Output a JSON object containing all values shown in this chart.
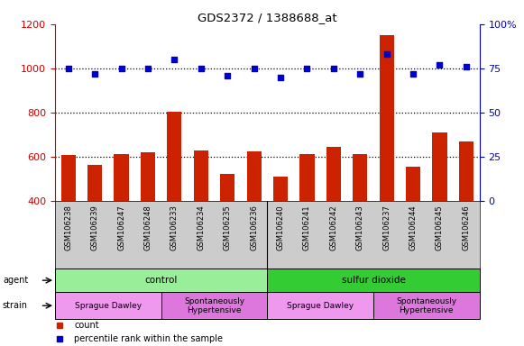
{
  "title": "GDS2372 / 1388688_at",
  "samples": [
    "GSM106238",
    "GSM106239",
    "GSM106247",
    "GSM106248",
    "GSM106233",
    "GSM106234",
    "GSM106235",
    "GSM106236",
    "GSM106240",
    "GSM106241",
    "GSM106242",
    "GSM106243",
    "GSM106237",
    "GSM106244",
    "GSM106245",
    "GSM106246"
  ],
  "counts": [
    610,
    565,
    615,
    620,
    805,
    630,
    525,
    625,
    510,
    615,
    645,
    615,
    1150,
    555,
    710,
    670
  ],
  "percentile": [
    75,
    72,
    75,
    75,
    80,
    75,
    71,
    75,
    70,
    75,
    75,
    72,
    83,
    72,
    77,
    76
  ],
  "ylim_left": [
    400,
    1200
  ],
  "ylim_right": [
    0,
    100
  ],
  "yticks_left": [
    400,
    600,
    800,
    1000,
    1200
  ],
  "yticks_right": [
    0,
    25,
    50,
    75,
    100
  ],
  "dotted_lines": [
    600,
    800,
    1000
  ],
  "bar_color": "#cc2200",
  "dot_color": "#0000cc",
  "bg_color": "#ffffff",
  "xticklabel_bg": "#cccccc",
  "agent_groups": [
    {
      "label": "control",
      "start": 0,
      "end": 7,
      "color": "#99ee99"
    },
    {
      "label": "sulfur dioxide",
      "start": 8,
      "end": 15,
      "color": "#33cc33"
    }
  ],
  "strain_groups": [
    {
      "label": "Sprague Dawley",
      "start": 0,
      "end": 3,
      "color": "#ee99ee"
    },
    {
      "label": "Spontaneously\nHypertensive",
      "start": 4,
      "end": 7,
      "color": "#dd77dd"
    },
    {
      "label": "Sprague Dawley",
      "start": 8,
      "end": 11,
      "color": "#ee99ee"
    },
    {
      "label": "Spontaneously\nHypertensive",
      "start": 12,
      "end": 15,
      "color": "#dd77dd"
    }
  ],
  "legend_items": [
    {
      "label": "count",
      "color": "#cc2200"
    },
    {
      "label": "percentile rank within the sample",
      "color": "#0000cc"
    }
  ],
  "xlabel_color": "#cc0000",
  "ylabel_right_color": "#0000cc",
  "label_left_text": [
    "agent",
    "strain"
  ]
}
